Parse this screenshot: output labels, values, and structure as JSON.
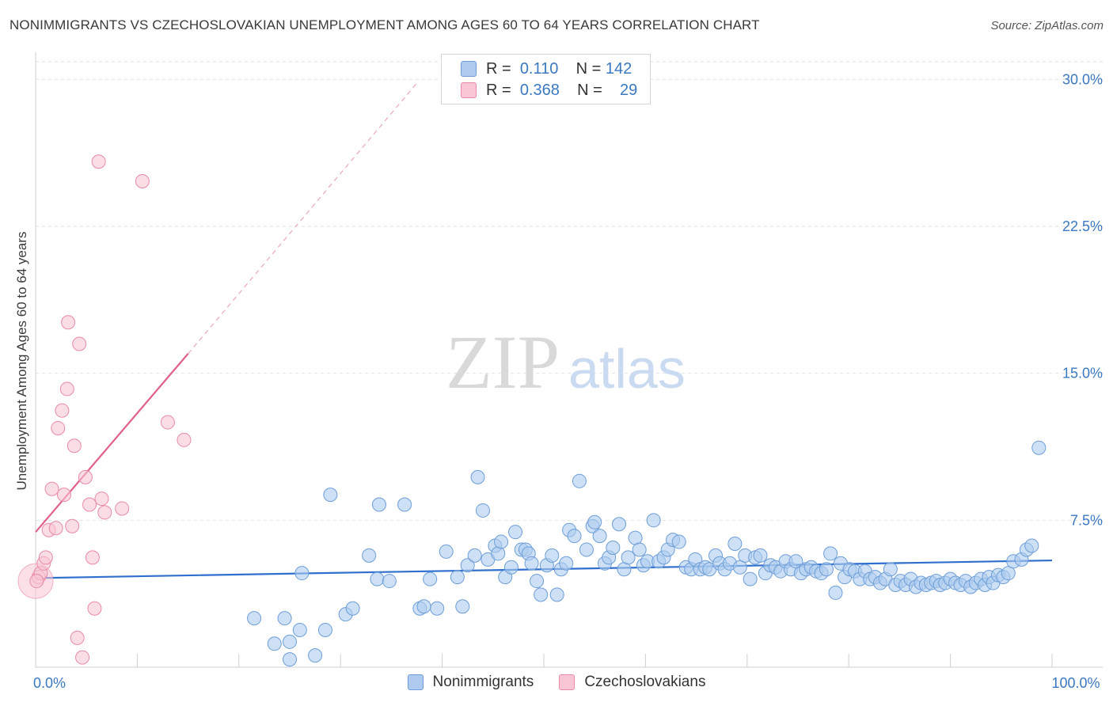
{
  "header": {
    "title": "NONIMMIGRANTS VS CZECHOSLOVAKIAN UNEMPLOYMENT AMONG AGES 60 TO 64 YEARS CORRELATION CHART",
    "source": "Source: ZipAtlas.com"
  },
  "watermark": {
    "zip": "ZIP",
    "atlas": "atlas"
  },
  "legend": {
    "rows": [
      {
        "r_label": "R =",
        "r_value": "0.110",
        "n_label": "N =",
        "n_value": "142"
      },
      {
        "r_label": "R =",
        "r_value": "0.368",
        "n_label": "N =",
        "n_value": "29"
      }
    ]
  },
  "colors": {
    "blue_fill": "#aecbef",
    "blue_stroke": "#6d9ed8",
    "blue_line": "#2f6fcd",
    "pink_fill": "#f8c6d4",
    "pink_stroke": "#e98aa7",
    "pink_line": "#e0608b",
    "axis_text": "#3b78c2",
    "grid": "#e2e2e2"
  },
  "chart_data": {
    "type": "scatter",
    "xlabel": "",
    "ylabel": "Unemployment Among Ages 60 to 64 years",
    "xlim": [
      0,
      100
    ],
    "ylim": [
      0,
      30.9
    ],
    "x_tick_labels": [
      {
        "v": 0,
        "label": "0.0%"
      },
      {
        "v": 100,
        "label": "100.0%"
      }
    ],
    "y_tick_labels": [
      {
        "v": 7.5,
        "label": "7.5%"
      },
      {
        "v": 15.0,
        "label": "15.0%"
      },
      {
        "v": 22.5,
        "label": "22.5%"
      },
      {
        "v": 30.0,
        "label": "30.0%"
      }
    ],
    "grid": true,
    "legend_position": "top-center",
    "series": [
      {
        "name": "Nonimmigrants",
        "color": "#aecbef",
        "trend": {
          "x": [
            0,
            100
          ],
          "y": [
            4.55,
            5.45
          ]
        },
        "points": [
          [
            21.5,
            2.5
          ],
          [
            24.5,
            2.5
          ],
          [
            25.0,
            1.3
          ],
          [
            26.0,
            1.9
          ],
          [
            28.5,
            1.9
          ],
          [
            27.5,
            0.6
          ],
          [
            25.0,
            0.4
          ],
          [
            23.5,
            1.2
          ],
          [
            30.5,
            2.7
          ],
          [
            31.2,
            3.0
          ],
          [
            26.2,
            4.8
          ],
          [
            29.0,
            8.8
          ],
          [
            32.8,
            5.7
          ],
          [
            33.6,
            4.5
          ],
          [
            34.8,
            4.4
          ],
          [
            33.8,
            8.3
          ],
          [
            36.3,
            8.3
          ],
          [
            37.8,
            3.0
          ],
          [
            38.2,
            3.1
          ],
          [
            38.8,
            4.5
          ],
          [
            39.5,
            3.0
          ],
          [
            40.4,
            5.9
          ],
          [
            41.5,
            4.6
          ],
          [
            42.0,
            3.1
          ],
          [
            42.5,
            5.2
          ],
          [
            43.2,
            5.7
          ],
          [
            43.5,
            9.7
          ],
          [
            44.0,
            8.0
          ],
          [
            44.5,
            5.5
          ],
          [
            45.2,
            6.2
          ],
          [
            45.5,
            5.8
          ],
          [
            45.8,
            6.4
          ],
          [
            46.2,
            4.6
          ],
          [
            46.8,
            5.1
          ],
          [
            47.2,
            6.9
          ],
          [
            47.8,
            6.0
          ],
          [
            48.2,
            6.0
          ],
          [
            48.5,
            5.8
          ],
          [
            48.8,
            5.3
          ],
          [
            49.3,
            4.4
          ],
          [
            49.7,
            3.7
          ],
          [
            50.3,
            5.2
          ],
          [
            50.8,
            5.7
          ],
          [
            51.3,
            3.7
          ],
          [
            51.7,
            5.0
          ],
          [
            52.2,
            5.3
          ],
          [
            52.5,
            7.0
          ],
          [
            53.0,
            6.7
          ],
          [
            53.5,
            9.5
          ],
          [
            54.2,
            6.0
          ],
          [
            54.8,
            7.2
          ],
          [
            55.5,
            6.7
          ],
          [
            55.0,
            7.4
          ],
          [
            56.0,
            5.3
          ],
          [
            56.4,
            5.6
          ],
          [
            56.8,
            6.1
          ],
          [
            57.4,
            7.3
          ],
          [
            57.9,
            5.0
          ],
          [
            58.3,
            5.6
          ],
          [
            59.0,
            6.6
          ],
          [
            59.4,
            6.0
          ],
          [
            59.8,
            5.2
          ],
          [
            60.2,
            5.4
          ],
          [
            60.8,
            7.5
          ],
          [
            61.3,
            5.4
          ],
          [
            61.8,
            5.6
          ],
          [
            62.2,
            6.0
          ],
          [
            62.7,
            6.5
          ],
          [
            63.3,
            6.4
          ],
          [
            64.0,
            5.1
          ],
          [
            64.5,
            5.0
          ],
          [
            64.9,
            5.5
          ],
          [
            65.4,
            5.0
          ],
          [
            65.9,
            5.1
          ],
          [
            66.3,
            5.0
          ],
          [
            66.9,
            5.7
          ],
          [
            67.3,
            5.3
          ],
          [
            67.8,
            5.0
          ],
          [
            68.3,
            5.3
          ],
          [
            68.8,
            6.3
          ],
          [
            69.3,
            5.1
          ],
          [
            69.8,
            5.7
          ],
          [
            70.3,
            4.5
          ],
          [
            70.8,
            5.6
          ],
          [
            71.3,
            5.7
          ],
          [
            71.8,
            4.8
          ],
          [
            72.3,
            5.2
          ],
          [
            72.8,
            5.1
          ],
          [
            73.3,
            4.9
          ],
          [
            73.8,
            5.4
          ],
          [
            74.3,
            5.0
          ],
          [
            74.8,
            5.4
          ],
          [
            75.3,
            4.8
          ],
          [
            75.8,
            5.0
          ],
          [
            76.3,
            5.1
          ],
          [
            76.8,
            4.9
          ],
          [
            77.3,
            4.8
          ],
          [
            77.8,
            5.0
          ],
          [
            78.2,
            5.8
          ],
          [
            78.7,
            3.8
          ],
          [
            79.2,
            5.3
          ],
          [
            79.6,
            4.6
          ],
          [
            80.1,
            5.0
          ],
          [
            80.6,
            4.9
          ],
          [
            81.1,
            4.5
          ],
          [
            81.6,
            4.9
          ],
          [
            82.1,
            4.5
          ],
          [
            82.6,
            4.6
          ],
          [
            83.1,
            4.3
          ],
          [
            83.6,
            4.5
          ],
          [
            84.1,
            5.0
          ],
          [
            84.6,
            4.2
          ],
          [
            85.1,
            4.4
          ],
          [
            85.6,
            4.2
          ],
          [
            86.1,
            4.5
          ],
          [
            86.6,
            4.1
          ],
          [
            87.1,
            4.3
          ],
          [
            87.6,
            4.2
          ],
          [
            88.1,
            4.3
          ],
          [
            88.6,
            4.4
          ],
          [
            89.0,
            4.2
          ],
          [
            89.5,
            4.3
          ],
          [
            90.0,
            4.5
          ],
          [
            90.5,
            4.3
          ],
          [
            91.0,
            4.2
          ],
          [
            91.5,
            4.4
          ],
          [
            92.0,
            4.1
          ],
          [
            92.5,
            4.3
          ],
          [
            93.0,
            4.5
          ],
          [
            93.4,
            4.2
          ],
          [
            93.8,
            4.6
          ],
          [
            94.2,
            4.3
          ],
          [
            94.7,
            4.7
          ],
          [
            95.2,
            4.6
          ],
          [
            95.7,
            4.8
          ],
          [
            96.2,
            5.4
          ],
          [
            97.0,
            5.5
          ],
          [
            97.5,
            6.0
          ],
          [
            98.0,
            6.2
          ],
          [
            98.7,
            11.2
          ]
        ]
      },
      {
        "name": "Czechoslovakians",
        "color": "#f8c6d4",
        "trend": {
          "x": [
            0,
            15
          ],
          "y": [
            6.9,
            16.0
          ]
        },
        "trend_extension": {
          "x": [
            15,
            37.5
          ],
          "y": [
            16.0,
            29.8
          ]
        },
        "points": [
          [
            0.3,
            4.6
          ],
          [
            0.5,
            4.8
          ],
          [
            0.8,
            5.3
          ],
          [
            1.0,
            5.6
          ],
          [
            1.3,
            7.0
          ],
          [
            1.6,
            9.1
          ],
          [
            2.0,
            7.1
          ],
          [
            2.2,
            12.2
          ],
          [
            2.6,
            13.1
          ],
          [
            2.8,
            8.8
          ],
          [
            3.1,
            14.2
          ],
          [
            3.2,
            17.6
          ],
          [
            3.6,
            7.2
          ],
          [
            3.8,
            11.3
          ],
          [
            4.1,
            1.5
          ],
          [
            4.3,
            16.5
          ],
          [
            4.6,
            0.5
          ],
          [
            4.9,
            9.7
          ],
          [
            5.3,
            8.3
          ],
          [
            5.6,
            5.6
          ],
          [
            5.8,
            3.0
          ],
          [
            6.2,
            25.8
          ],
          [
            6.5,
            8.6
          ],
          [
            6.8,
            7.9
          ],
          [
            8.5,
            8.1
          ],
          [
            10.5,
            24.8
          ],
          [
            13.0,
            12.5
          ],
          [
            14.6,
            11.6
          ],
          [
            0.1,
            4.4
          ]
        ]
      }
    ]
  }
}
